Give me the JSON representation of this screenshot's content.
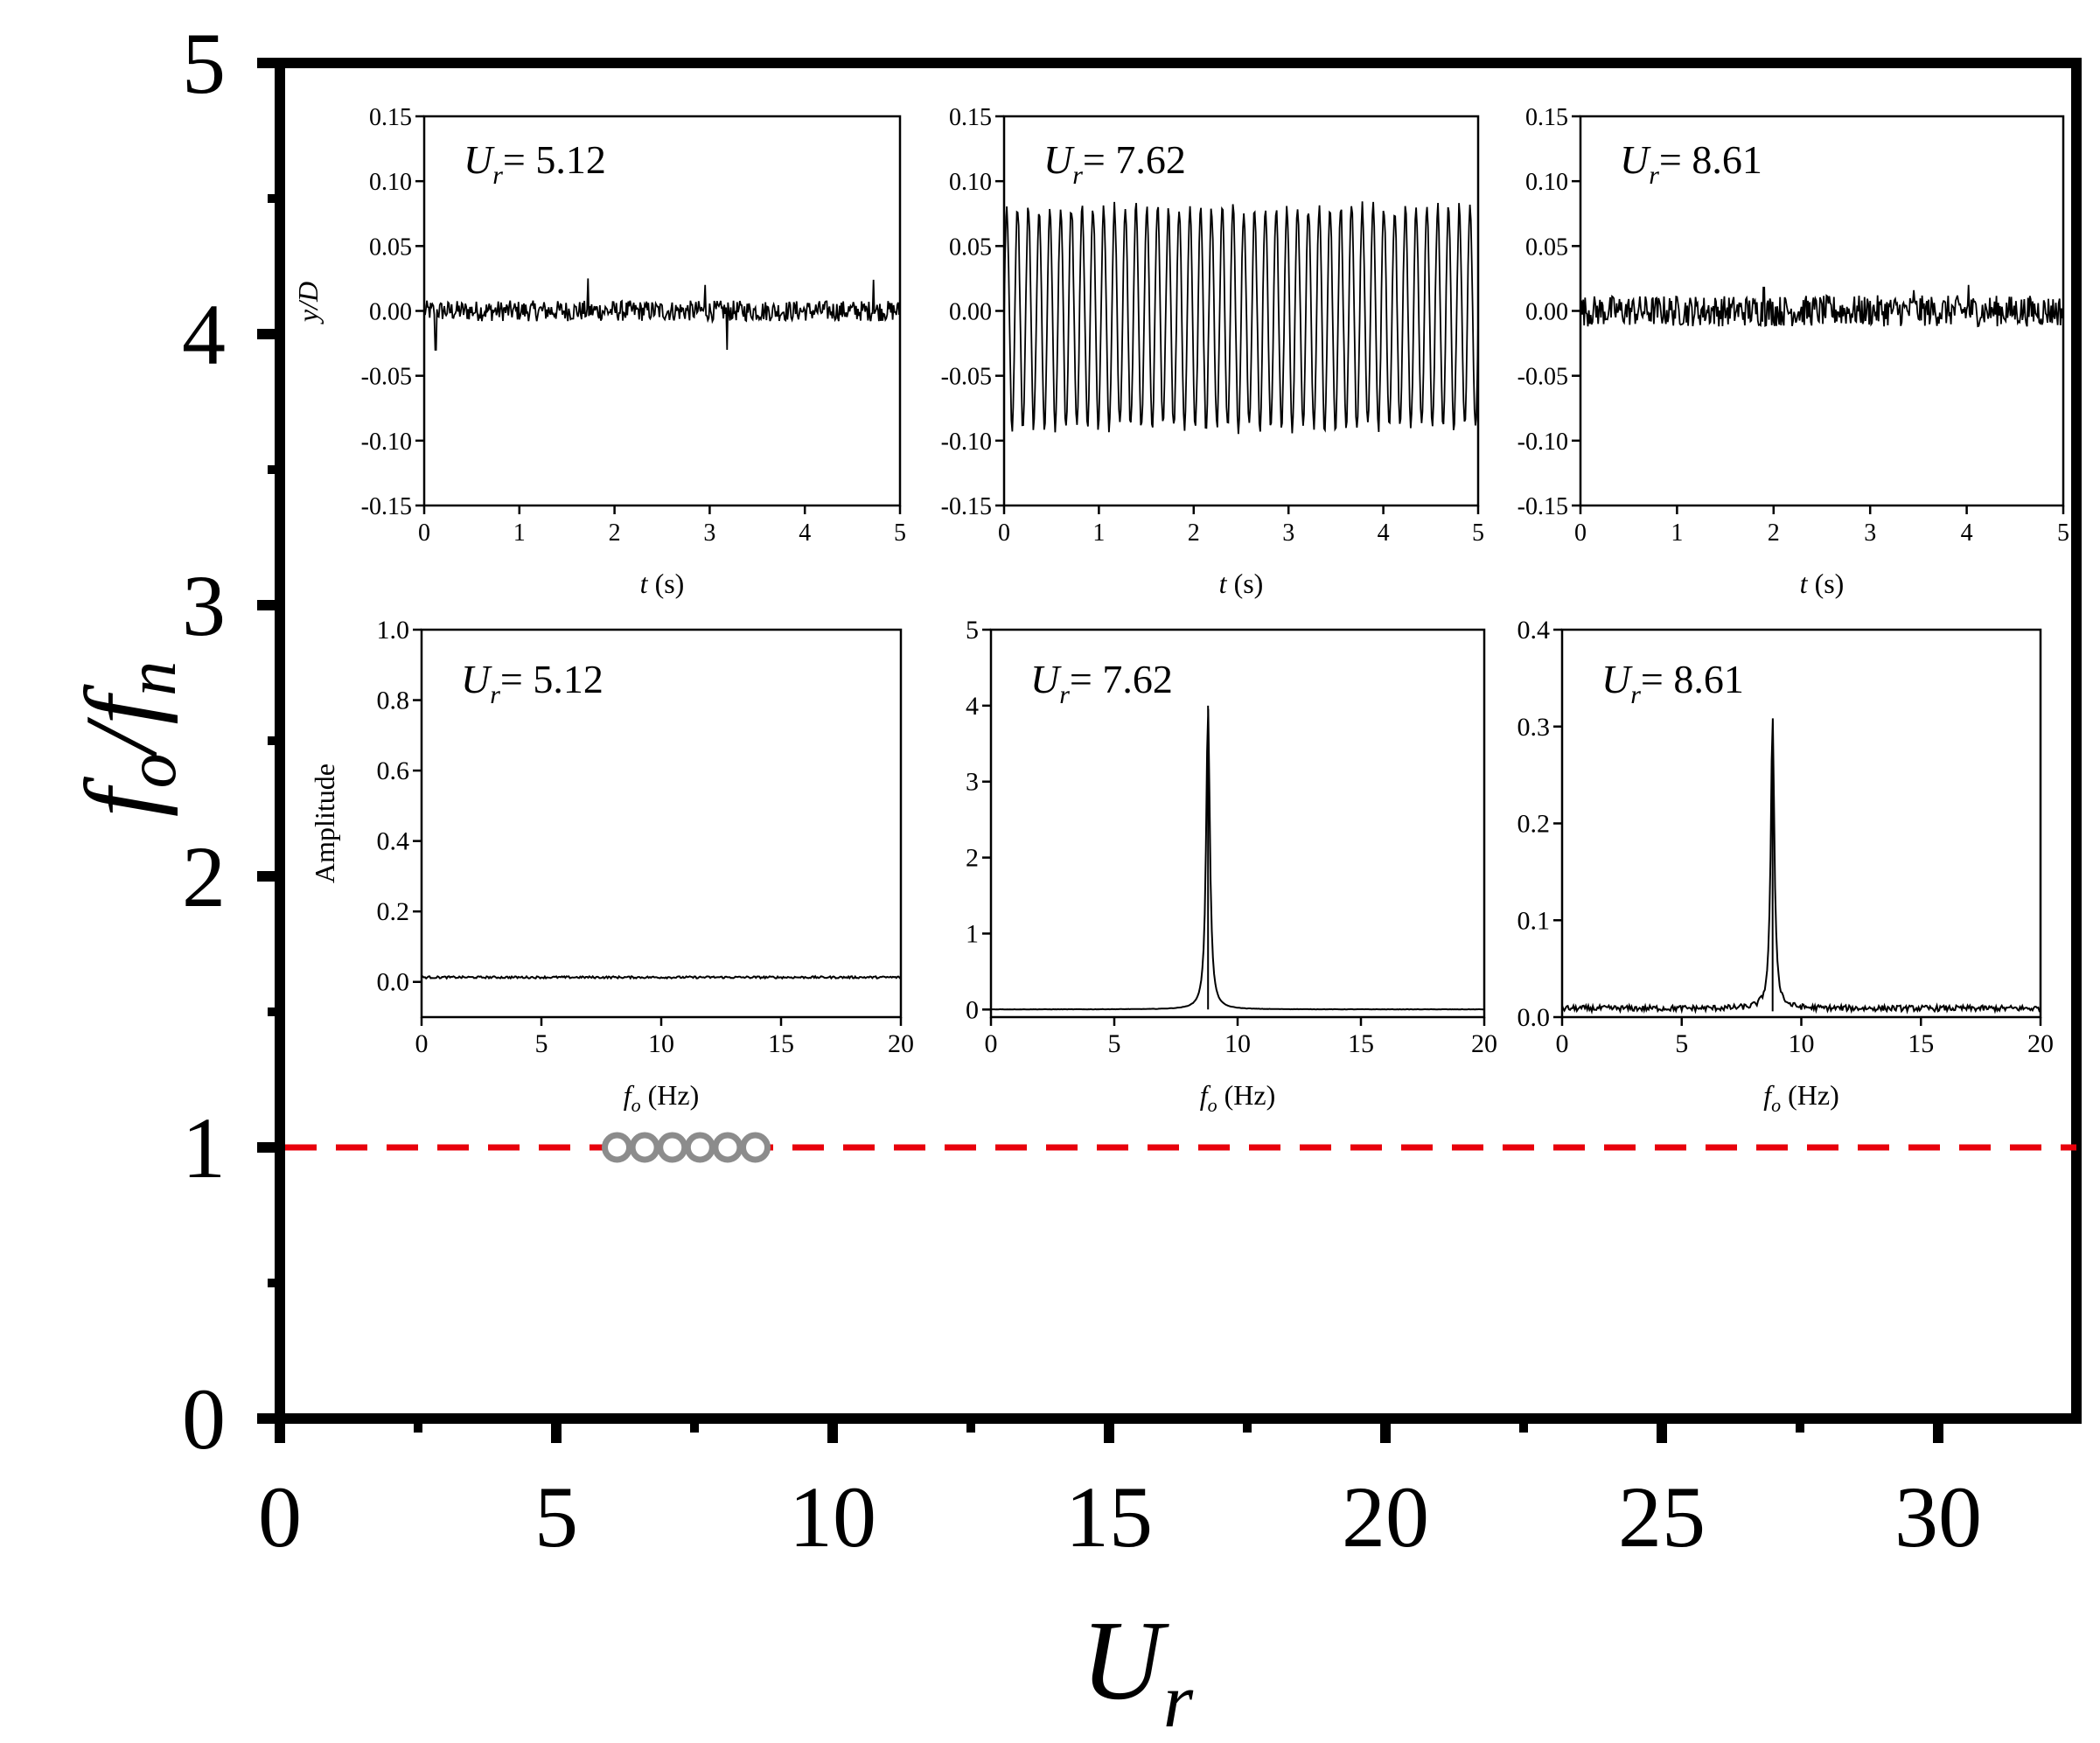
{
  "colors": {
    "axis": "#000000",
    "reference_line": "#e8000b",
    "marker": "#8c8c8c",
    "trace": "#000000"
  },
  "chart_data": {
    "type": "scatter",
    "xlabel": "U_r",
    "ylabel": "f_o/f_n",
    "xlim": [
      0,
      32.5
    ],
    "ylim": [
      0,
      5
    ],
    "xticks": [
      0,
      5,
      10,
      15,
      20,
      25,
      30
    ],
    "yticks": [
      0,
      1,
      2,
      3,
      4,
      5
    ],
    "reference_line": {
      "y": 1,
      "style": "dashed",
      "color": "#e8000b"
    },
    "series": [
      {
        "name": "f_o/f_n",
        "marker": "open-circle",
        "points": [
          {
            "x": 6.1,
            "y": 1
          },
          {
            "x": 6.6,
            "y": 1
          },
          {
            "x": 7.1,
            "y": 1
          },
          {
            "x": 7.6,
            "y": 1
          },
          {
            "x": 8.1,
            "y": 1
          },
          {
            "x": 8.6,
            "y": 1
          }
        ]
      }
    ],
    "insets": [
      {
        "id": "ts1",
        "kind": "timeseries",
        "annotation": "= 5.12",
        "xlabel_main": "t",
        "xlabel_unit": "(s)",
        "ylabel": "y/D",
        "xlim": [
          0,
          5
        ],
        "ylim": [
          -0.15,
          0.15
        ],
        "xticks": [
          "0",
          "1",
          "2",
          "3",
          "4",
          "5"
        ],
        "yticks": [
          "0.15",
          "0.10",
          "0.05",
          "0.00",
          "-0.05",
          "-0.10",
          "-0.15"
        ],
        "signal": {
          "type": "noise",
          "amplitude": 0.008,
          "spikes": [
            [
              0.12,
              -0.03
            ],
            [
              1.72,
              0.025
            ],
            [
              2.95,
              0.02
            ],
            [
              3.18,
              -0.03
            ],
            [
              4.72,
              0.024
            ]
          ]
        }
      },
      {
        "id": "ts2",
        "kind": "timeseries",
        "annotation": "= 7.62",
        "xlabel_main": "t",
        "xlabel_unit": "(s)",
        "ylabel": "",
        "xlim": [
          0,
          5
        ],
        "ylim": [
          -0.15,
          0.15
        ],
        "xticks": [
          "0",
          "1",
          "2",
          "3",
          "4",
          "5"
        ],
        "yticks": [
          "0.15",
          "0.10",
          "0.05",
          "0.00",
          "-0.05",
          "-0.10",
          "-0.15"
        ],
        "signal": {
          "type": "sine",
          "frequency_hz": 8.8,
          "amplitude": 0.085,
          "offset": -0.005
        }
      },
      {
        "id": "ts3",
        "kind": "timeseries",
        "annotation": "= 8.61",
        "xlabel_main": "t",
        "xlabel_unit": "(s)",
        "ylabel": "",
        "xlim": [
          0,
          5
        ],
        "ylim": [
          -0.15,
          0.15
        ],
        "xticks": [
          "0",
          "1",
          "2",
          "3",
          "4",
          "5"
        ],
        "yticks": [
          "0.15",
          "0.10",
          "0.05",
          "0.00",
          "-0.05",
          "-0.10",
          "-0.15"
        ],
        "signal": {
          "type": "noise",
          "amplitude": 0.012,
          "spikes": [
            [
              1.9,
              0.018
            ],
            [
              3.45,
              0.016
            ],
            [
              4.02,
              0.02
            ]
          ]
        }
      },
      {
        "id": "sp1",
        "kind": "spectrum",
        "annotation": "= 5.12",
        "xlabel_main": "f",
        "xlabel_sub": "o",
        "xlabel_unit": "(Hz)",
        "ylabel": "Amplitude",
        "xlim": [
          0,
          20
        ],
        "ylim": [
          -0.1,
          1.0
        ],
        "xticks": [
          "0",
          "5",
          "10",
          "15",
          "20"
        ],
        "yticks": [
          "1.0",
          "0.8",
          "0.6",
          "0.4",
          "0.2",
          "0.0"
        ],
        "signal": {
          "type": "spectrum",
          "baseline": 0.01,
          "noise": 0.006,
          "peak_hz": null,
          "peak_amp": 0
        }
      },
      {
        "id": "sp2",
        "kind": "spectrum",
        "annotation": "= 7.62",
        "xlabel_main": "f",
        "xlabel_sub": "o",
        "xlabel_unit": "(Hz)",
        "ylabel": "",
        "xlim": [
          0,
          20
        ],
        "ylim": [
          -0.1,
          5
        ],
        "xticks": [
          "0",
          "5",
          "10",
          "15",
          "20"
        ],
        "yticks": [
          "5",
          "4",
          "3",
          "2",
          "1",
          "0"
        ],
        "signal": {
          "type": "spectrum",
          "baseline": 0.0,
          "noise": 0.004,
          "peak_hz": 8.8,
          "peak_amp": 4.0
        }
      },
      {
        "id": "sp3",
        "kind": "spectrum",
        "annotation": "= 8.61",
        "xlabel_main": "f",
        "xlabel_sub": "o",
        "xlabel_unit": "(Hz)",
        "ylabel": "",
        "xlim": [
          0,
          20
        ],
        "ylim": [
          0,
          0.4
        ],
        "xticks": [
          "0",
          "5",
          "10",
          "15",
          "20"
        ],
        "yticks": [
          "0.4",
          "0.3",
          "0.2",
          "0.1",
          "0.0"
        ],
        "signal": {
          "type": "spectrum",
          "baseline": 0.006,
          "noise": 0.006,
          "peak_hz": 8.8,
          "peak_amp": 0.3
        }
      }
    ]
  }
}
